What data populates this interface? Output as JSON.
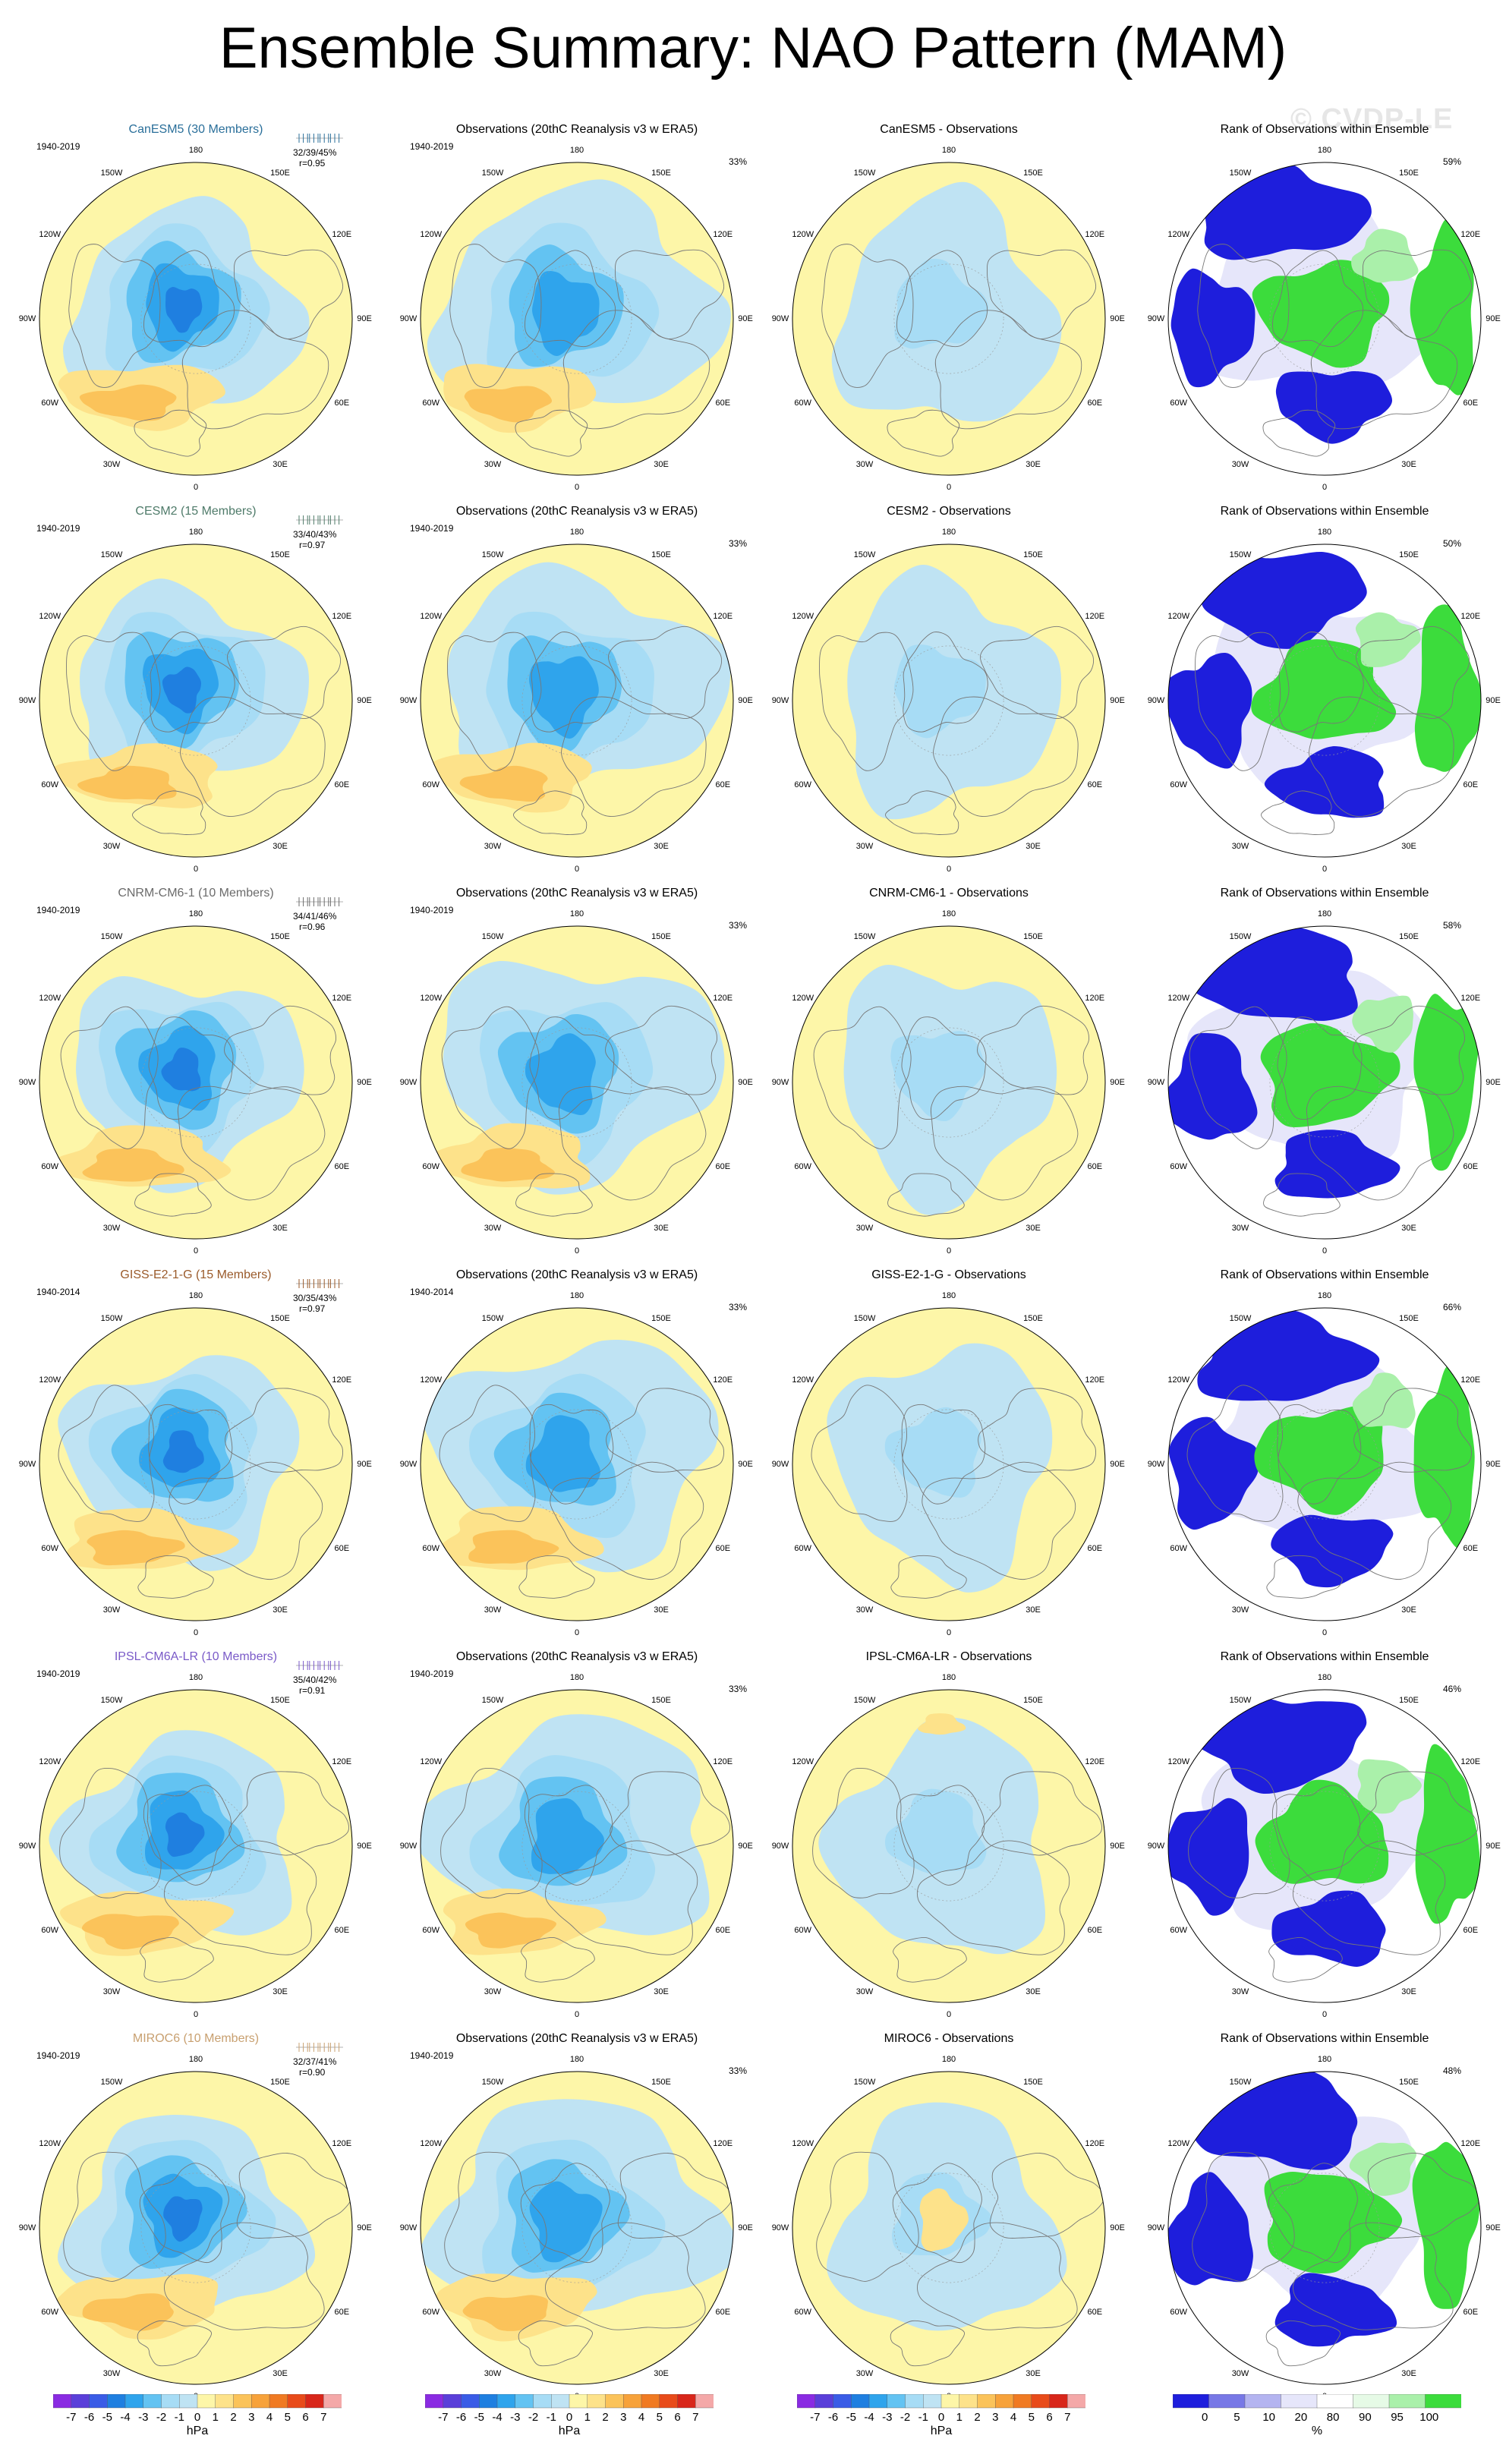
{
  "title": "Ensemble Summary: NAO Pattern (MAM)",
  "watermark": "© CVDP-LE",
  "obs_title": "Observations (20thC Reanalysis v3 w ERA5)",
  "obs_pct": "33%",
  "rank_title": "Rank of Observations within Ensemble",
  "lon_labels": [
    "180",
    "150E",
    "120E",
    "90E",
    "60E",
    "30E",
    "0",
    "30W",
    "60W",
    "90W",
    "120W",
    "150W"
  ],
  "models": [
    {
      "name": "CanESM5 (30 Members)",
      "color": "#2a6f9a",
      "period": "1940-2019",
      "stats": "32/39/45%",
      "r": "r=0.95",
      "diff_title": "CanESM5 - Observations",
      "rank_pct": "59%"
    },
    {
      "name": "CESM2 (15 Members)",
      "color": "#4f7b6a",
      "period": "1940-2019",
      "stats": "33/40/43%",
      "r": "r=0.97",
      "diff_title": "CESM2 - Observations",
      "rank_pct": "50%"
    },
    {
      "name": "CNRM-CM6-1 (10 Members)",
      "color": "#6b6b6b",
      "period": "1940-2019",
      "stats": "34/41/46%",
      "r": "r=0.96",
      "diff_title": "CNRM-CM6-1 - Observations",
      "rank_pct": "58%"
    },
    {
      "name": "GISS-E2-1-G (15 Members)",
      "color": "#9a5a2a",
      "period": "1940-2014",
      "stats": "30/35/43%",
      "r": "r=0.97",
      "diff_title": "GISS-E2-1-G - Observations",
      "rank_pct": "66%"
    },
    {
      "name": "IPSL-CM6A-LR (10 Members)",
      "color": "#7a5ac8",
      "period": "1940-2019",
      "stats": "35/40/42%",
      "r": "r=0.91",
      "diff_title": "IPSL-CM6A-LR - Observations",
      "rank_pct": "46%"
    },
    {
      "name": "MIROC6 (10 Members)",
      "color": "#c8a070",
      "period": "1940-2019",
      "stats": "32/37/41%",
      "r": "r=0.90",
      "diff_title": "MIROC6 - Observations",
      "rank_pct": "48%"
    }
  ],
  "colorbar": {
    "ticks": [
      "-7",
      "-6",
      "-5",
      "-4",
      "-3",
      "-2",
      "-1",
      "0",
      "1",
      "2",
      "3",
      "4",
      "5",
      "6",
      "7"
    ],
    "unit": "hPa",
    "colors": [
      "#8a2be2",
      "#5a3fd9",
      "#3a5ce6",
      "#1f7fe0",
      "#2fa4ec",
      "#63c3f2",
      "#a7dcf5",
      "#bfe3f3",
      "#fdf6a8",
      "#fde28a",
      "#fbc35a",
      "#f7a23a",
      "#f07a22",
      "#e84b1a",
      "#d8261a",
      "#f4a8a8"
    ]
  },
  "rank_colorbar": {
    "ticks": [
      "0",
      "5",
      "10",
      "20",
      "80",
      "90",
      "95",
      "100"
    ],
    "unit": "%",
    "colors": [
      "#1e1edc",
      "#7878e6",
      "#b4b4f0",
      "#e6e6fa",
      "#ffffff",
      "#e6fae6",
      "#aaf0aa",
      "#3cdc3c"
    ]
  }
}
